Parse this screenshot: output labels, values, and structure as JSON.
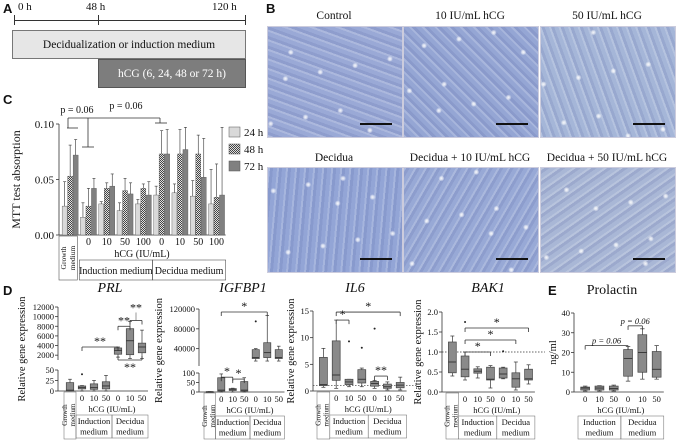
{
  "panel_labels": {
    "a": "A",
    "b": "B",
    "c": "C",
    "d": "D",
    "e": "E"
  },
  "timeline": {
    "t0": "0 h",
    "t48": "48 h",
    "t120": "120 h",
    "medium_label": "Decidualization or induction medium",
    "hcg_label": "hCG (6, 24, 48 or 72 h)"
  },
  "micrographs": [
    {
      "label": "Control",
      "tint": "#9aa9d6"
    },
    {
      "label": "10 IU/mL hCG",
      "tint": "#95a6d4"
    },
    {
      "label": "50 IU/mL hCG",
      "tint": "#a5b6d8"
    },
    {
      "label": "Decidua",
      "tint": "#93a5d6"
    },
    {
      "label": "Decidua + 10 IU/mL hCG",
      "tint": "#98a9d6"
    },
    {
      "label": "Decidua + 50 IU/mL hCG",
      "tint": "#a9b7d6"
    }
  ],
  "chart_data": [
    {
      "id": "mtt",
      "type": "bar",
      "title": "",
      "ylabel": "MTT test absorption",
      "xlabel": "hCG (IU/mL)",
      "ylim": [
        0,
        0.1
      ],
      "yticks": [
        0,
        0.05,
        0.1
      ],
      "ytick_labels": [
        "0.00",
        "0.05",
        "0.10"
      ],
      "categories": [
        "",
        "0",
        "10",
        "50",
        "100",
        "0",
        "10",
        "50",
        "100"
      ],
      "growth_label": [
        "Growth",
        "medium"
      ],
      "groups": [
        {
          "label": "Induction medium",
          "span": [
            1,
            4
          ]
        },
        {
          "label": "Decidua medium",
          "span": [
            5,
            8
          ]
        }
      ],
      "series": [
        {
          "name": "24 h",
          "color": "#d9d9d9",
          "values": [
            0.026,
            0.016,
            0.028,
            0.022,
            0.028,
            0.036,
            0.038,
            0.035,
            0.028
          ],
          "errors": [
            0.022,
            0.013,
            0.002,
            0.007,
            0.004,
            0.008,
            0.008,
            0.014,
            0.031
          ]
        },
        {
          "name": "48 h",
          "color": "#9a9a9a",
          "values": [
            0.053,
            0.026,
            0.042,
            0.04,
            0.042,
            0.073,
            0.073,
            0.073,
            0.034
          ],
          "errors": [
            0.028,
            0.016,
            0.005,
            0.011,
            0.004,
            0.021,
            0.022,
            0.017,
            0.03
          ]
        },
        {
          "name": "72 h",
          "color": "#808080",
          "values": [
            0.072,
            0.042,
            0.044,
            0.037,
            0.036,
            0.073,
            0.077,
            0.052,
            0.036
          ],
          "errors": [
            0.014,
            0.009,
            0.011,
            0.01,
            0.012,
            0.022,
            0.02,
            0.035,
            0.061
          ]
        }
      ],
      "annotations": [
        {
          "text": "p = 0.06"
        },
        {
          "text": "p = 0.06"
        }
      ],
      "legend_position": "right"
    },
    {
      "id": "prl",
      "type": "box",
      "title": "PRL",
      "ylabel": "Relative gene expression",
      "xlabel": "hCG (IU/mL)",
      "categories": [
        "",
        "0",
        "10",
        "50",
        "0",
        "10",
        "50"
      ],
      "growth_label": [
        "Growth",
        "medium"
      ],
      "groups": [
        {
          "label": [
            "Induction",
            "medium"
          ],
          "span": [
            1,
            3
          ]
        },
        {
          "label": [
            "Decidua",
            "medium"
          ],
          "span": [
            4,
            6
          ]
        }
      ],
      "axis_segments": [
        {
          "range": [
            0,
            50
          ],
          "ticks": [
            0,
            25,
            50
          ]
        },
        {
          "range": [
            1000,
            12000
          ],
          "ticks": [
            2000,
            4000,
            6000,
            8000,
            10000,
            12000
          ]
        }
      ],
      "boxes": [
        {
          "min": 0,
          "q1": 0,
          "median": 2,
          "q3": 20,
          "max": 28,
          "outliers": []
        },
        {
          "min": 0,
          "q1": 5,
          "median": 8,
          "q3": 12,
          "max": 13,
          "outliers": [
            40
          ]
        },
        {
          "min": 0,
          "q1": 4,
          "median": 8,
          "q3": 17,
          "max": 25,
          "outliers": []
        },
        {
          "min": 0,
          "q1": 5,
          "median": 12,
          "q3": 22,
          "max": 37,
          "outliers": []
        },
        {
          "min": 1600,
          "q1": 2200,
          "median": 3000,
          "q3": 3500,
          "max": 3700,
          "outliers": []
        },
        {
          "min": 1300,
          "q1": 2100,
          "median": 5000,
          "q3": 7500,
          "max": 9000,
          "outliers": []
        },
        {
          "min": 1300,
          "q1": 2500,
          "median": 3700,
          "q3": 4500,
          "max": 7200,
          "outliers": []
        }
      ],
      "reference_line": null,
      "significance": [
        {
          "from": 1,
          "to": 4,
          "y": 3700,
          "label": "**"
        },
        {
          "from": 4,
          "to": 5,
          "y": 8000,
          "label": "**"
        },
        {
          "from": 5,
          "to": 6,
          "y": 9200,
          "label": "**"
        },
        {
          "from": 4,
          "to": 6,
          "y": 1000,
          "label": "**",
          "down": true
        }
      ]
    },
    {
      "id": "igfbp1",
      "type": "box",
      "title": "IGFBP1",
      "ylabel": "Relative gene expression",
      "xlabel": "hCG (IU/mL)",
      "categories": [
        "",
        "0",
        "10",
        "50",
        "0",
        "10",
        "50"
      ],
      "growth_label": [
        "Growth",
        "medium"
      ],
      "groups": [
        {
          "label": [
            "Induction",
            "medium"
          ],
          "span": [
            1,
            3
          ]
        },
        {
          "label": [
            "Decidua",
            "medium"
          ],
          "span": [
            4,
            6
          ]
        }
      ],
      "axis_segments": [
        {
          "range": [
            0,
            100
          ],
          "ticks": [
            0,
            50,
            100
          ]
        },
        {
          "range": [
            5000,
            120000
          ],
          "ticks": [
            40000,
            80000,
            120000
          ]
        }
      ],
      "boxes": [
        {
          "min": 0,
          "q1": 0,
          "median": 1,
          "q3": 2,
          "max": 2,
          "outliers": []
        },
        {
          "min": 0,
          "q1": 5,
          "median": 10,
          "q3": 75,
          "max": 95,
          "outliers": []
        },
        {
          "min": 0,
          "q1": 8,
          "median": 12,
          "q3": 18,
          "max": 20,
          "outliers": []
        },
        {
          "min": 0,
          "q1": 5,
          "median": 10,
          "q3": 55,
          "max": 75,
          "outliers": []
        },
        {
          "min": 15000,
          "q1": 20000,
          "median": 22000,
          "q3": 38000,
          "max": 40000,
          "outliers": [
            95000
          ]
        },
        {
          "min": 15000,
          "q1": 22000,
          "median": 32000,
          "q3": 52000,
          "max": 107000,
          "outliers": []
        },
        {
          "min": 15000,
          "q1": 20000,
          "median": 22000,
          "q3": 38000,
          "max": 45000,
          "outliers": []
        }
      ],
      "reference_line": null,
      "significance": [
        {
          "from": 1,
          "to": 5,
          "y": 114000,
          "label": "*"
        },
        {
          "from": 1,
          "to": 2,
          "y": 78,
          "label": "*"
        },
        {
          "from": 2,
          "to": 3,
          "y": 68,
          "label": "*"
        }
      ]
    },
    {
      "id": "il6",
      "type": "box",
      "title": "IL6",
      "ylabel": "Relative gene expression",
      "xlabel": "hCG (IU/mL)",
      "categories": [
        "",
        "0",
        "10",
        "50",
        "0",
        "10",
        "50"
      ],
      "growth_label": [
        "Growth",
        "medium"
      ],
      "groups": [
        {
          "label": [
            "Induction",
            "medium"
          ],
          "span": [
            1,
            3
          ]
        },
        {
          "label": [
            "Decidua",
            "medium"
          ],
          "span": [
            4,
            6
          ]
        }
      ],
      "axis_segments": [
        {
          "range": [
            0,
            15
          ],
          "ticks": [
            0,
            5,
            10,
            15
          ]
        }
      ],
      "boxes": [
        {
          "min": 0.7,
          "q1": 1,
          "median": 1.2,
          "q3": 6.3,
          "max": 8,
          "outliers": []
        },
        {
          "min": 0.5,
          "q1": 2,
          "median": 3,
          "q3": 9.4,
          "max": 13.3,
          "outliers": []
        },
        {
          "min": 0.8,
          "q1": 1.2,
          "median": 1.7,
          "q3": 2.2,
          "max": 2.2,
          "outliers": [
            9.3
          ]
        },
        {
          "min": 0.8,
          "q1": 1.5,
          "median": 2.2,
          "q3": 4,
          "max": 4.3,
          "outliers": [
            8.1
          ]
        },
        {
          "min": 0.5,
          "q1": 0.9,
          "median": 1.4,
          "q3": 1.8,
          "max": 2,
          "outliers": [
            11.7
          ]
        },
        {
          "min": 0.2,
          "q1": 0.5,
          "median": 0.8,
          "q3": 1.3,
          "max": 1.7,
          "outliers": []
        },
        {
          "min": 0.2,
          "q1": 0.6,
          "median": 1.1,
          "q3": 1.6,
          "max": 2.6,
          "outliers": []
        }
      ],
      "reference_line": 1,
      "significance": [
        {
          "from": 1,
          "to": 6,
          "y": 14.8,
          "label": "*"
        },
        {
          "from": 1,
          "to": 2,
          "y": 13.3,
          "label": "*"
        },
        {
          "from": 4,
          "to": 5,
          "y": 2.8,
          "label": "**"
        }
      ]
    },
    {
      "id": "bak1",
      "type": "box",
      "title": "BAK1",
      "ylabel": "Relative gene expression",
      "xlabel": "hCG (IU/mL)",
      "categories": [
        "",
        "0",
        "10",
        "50",
        "0",
        "10",
        "50"
      ],
      "growth_label": [
        "Growth",
        "medium"
      ],
      "groups": [
        {
          "label": [
            "Induction",
            "medium"
          ],
          "span": [
            1,
            3
          ]
        },
        {
          "label": [
            "Decidua",
            "medium"
          ],
          "span": [
            4,
            6
          ]
        }
      ],
      "axis_segments": [
        {
          "range": [
            0,
            2
          ],
          "ticks": [
            0,
            0.5,
            1,
            1.5,
            2
          ],
          "tick_labels": [
            "0.0",
            "0.5",
            "1.0",
            "1.5",
            "2.0"
          ]
        }
      ],
      "boxes": [
        {
          "min": 0.4,
          "q1": 0.48,
          "median": 0.75,
          "q3": 1.25,
          "max": 1.4,
          "outliers": []
        },
        {
          "min": 0.3,
          "q1": 0.38,
          "median": 0.57,
          "q3": 0.9,
          "max": 1.0,
          "outliers": [
            1.75
          ]
        },
        {
          "min": 0.35,
          "q1": 0.47,
          "median": 0.52,
          "q3": 0.58,
          "max": 0.63,
          "outliers": []
        },
        {
          "min": 0.1,
          "q1": 0.3,
          "median": 0.32,
          "q3": 0.62,
          "max": 0.66,
          "outliers": []
        },
        {
          "min": 0.33,
          "q1": 0.35,
          "median": 0.45,
          "q3": 0.6,
          "max": 0.62,
          "outliers": [
            1.02
          ]
        },
        {
          "min": 0.05,
          "q1": 0.12,
          "median": 0.33,
          "q3": 0.48,
          "max": 0.75,
          "outliers": []
        },
        {
          "min": 0.2,
          "q1": 0.3,
          "median": 0.33,
          "q3": 0.57,
          "max": 0.68,
          "outliers": []
        }
      ],
      "reference_line": 1,
      "significance": [
        {
          "from": 1,
          "to": 3,
          "y": 1.0,
          "label": "*"
        },
        {
          "from": 1,
          "to": 5,
          "y": 1.3,
          "label": "*"
        },
        {
          "from": 1,
          "to": 6,
          "y": 1.6,
          "label": "*"
        }
      ]
    },
    {
      "id": "prolactin",
      "type": "box",
      "title": "Prolactin",
      "ylabel": "ng/ml",
      "xlabel": "hCG (IU/mL)",
      "categories": [
        "0",
        "10",
        "50",
        "0",
        "10",
        "50"
      ],
      "growth_label": null,
      "groups": [
        {
          "label": [
            "Induction",
            "medium"
          ],
          "span": [
            0,
            2
          ]
        },
        {
          "label": [
            "Decidua",
            "medium"
          ],
          "span": [
            3,
            5
          ]
        }
      ],
      "axis_segments": [
        {
          "range": [
            0,
            40
          ],
          "ticks": [
            0,
            10,
            20,
            30,
            40
          ]
        }
      ],
      "boxes": [
        {
          "min": 0.5,
          "q1": 1,
          "median": 2,
          "q3": 2.5,
          "max": 3,
          "outliers": []
        },
        {
          "min": 0.5,
          "q1": 1,
          "median": 2,
          "q3": 3,
          "max": 3.2,
          "outliers": []
        },
        {
          "min": 0.5,
          "q1": 1,
          "median": 1.8,
          "q3": 3,
          "max": 3.5,
          "outliers": []
        },
        {
          "min": 5.5,
          "q1": 8,
          "median": 17,
          "q3": 21.5,
          "max": 23,
          "outliers": []
        },
        {
          "min": 6.5,
          "q1": 10,
          "median": 20,
          "q3": 29,
          "max": 32,
          "outliers": []
        },
        {
          "min": 6.5,
          "q1": 7.5,
          "median": 11.5,
          "q3": 20.5,
          "max": 23.5,
          "outliers": []
        }
      ],
      "reference_line": null,
      "significance": [
        {
          "from": 0,
          "to": 3,
          "y": 23.5,
          "label": "p = 0.06"
        },
        {
          "from": 3,
          "to": 4,
          "y": 33.5,
          "label": "p = 0.06"
        }
      ]
    }
  ]
}
